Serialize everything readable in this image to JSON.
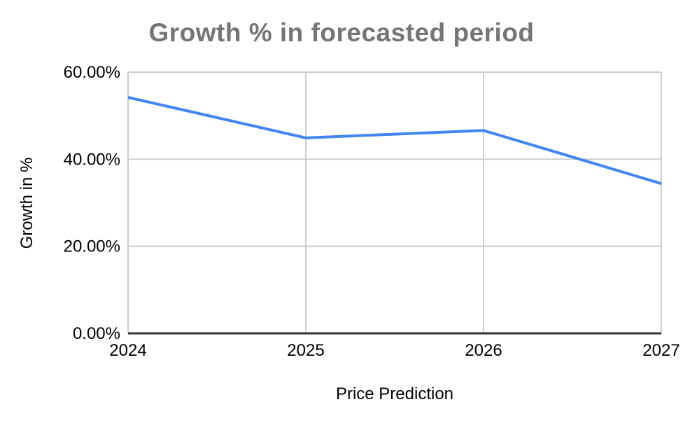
{
  "chart": {
    "title": "Growth % in forecasted period",
    "x_axis_title": "Price Prediction",
    "y_axis_title": "Growth in %"
  },
  "chart_data": {
    "type": "line",
    "title": "Growth % in forecasted period",
    "xlabel": "Price Prediction",
    "ylabel": "Growth in %",
    "categories": [
      "2024",
      "2025",
      "2026",
      "2027"
    ],
    "series": [
      {
        "name": "Growth %",
        "values": [
          54.2,
          44.9,
          46.6,
          34.4
        ]
      }
    ],
    "values_unit": "percent",
    "ylim": [
      0,
      60
    ],
    "y_ticks": [
      {
        "value": 0,
        "label": "0.00%"
      },
      {
        "value": 20,
        "label": "20.00%"
      },
      {
        "value": 40,
        "label": "40.00%"
      },
      {
        "value": 60,
        "label": "60.00%"
      }
    ],
    "grid": true,
    "legend_position": "none"
  },
  "colors": {
    "line": "#4285f4",
    "title_text": "#757575",
    "axis_text": "#000000",
    "gridline": "#cccccc",
    "baseline": "#333333",
    "background": "#ffffff"
  }
}
